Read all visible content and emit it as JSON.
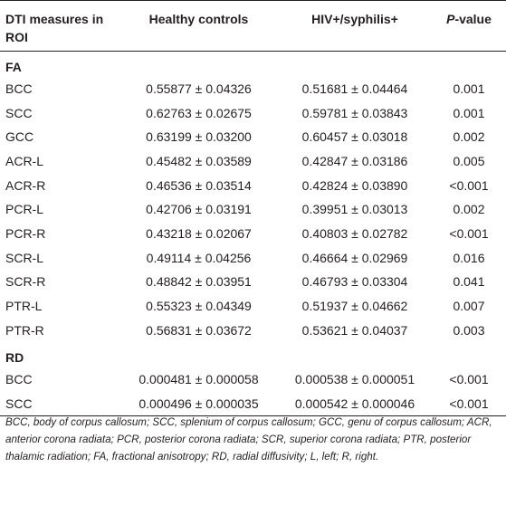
{
  "table": {
    "header": {
      "col1": "DTI measures in ROI",
      "col2": "Healthy controls",
      "col3": "HIV+/syphilis+",
      "col4_p": "P",
      "col4_rest": "-value"
    },
    "sections": [
      {
        "title": "FA",
        "rows": [
          {
            "roi": "BCC",
            "hc": "0.55877 ± 0.04326",
            "hiv": "0.51681 ± 0.04464",
            "p": "0.001"
          },
          {
            "roi": "SCC",
            "hc": "0.62763 ± 0.02675",
            "hiv": "0.59781 ± 0.03843",
            "p": "0.001"
          },
          {
            "roi": "GCC",
            "hc": "0.63199 ± 0.03200",
            "hiv": "0.60457 ± 0.03018",
            "p": "0.002"
          },
          {
            "roi": "ACR-L",
            "hc": "0.45482 ± 0.03589",
            "hiv": "0.42847 ± 0.03186",
            "p": "0.005"
          },
          {
            "roi": "ACR-R",
            "hc": "0.46536 ± 0.03514",
            "hiv": "0.42824 ± 0.03890",
            "p": "<0.001"
          },
          {
            "roi": "PCR-L",
            "hc": "0.42706 ± 0.03191",
            "hiv": "0.39951 ± 0.03013",
            "p": "0.002"
          },
          {
            "roi": "PCR-R",
            "hc": "0.43218 ± 0.02067",
            "hiv": "0.40803 ± 0.02782",
            "p": "<0.001"
          },
          {
            "roi": "SCR-L",
            "hc": "0.49114 ± 0.04256",
            "hiv": "0.46664 ± 0.02969",
            "p": "0.016"
          },
          {
            "roi": "SCR-R",
            "hc": "0.48842 ± 0.03951",
            "hiv": "0.46793 ± 0.03304",
            "p": "0.041"
          },
          {
            "roi": "PTR-L",
            "hc": "0.55323 ± 0.04349",
            "hiv": "0.51937 ± 0.04662",
            "p": "0.007"
          },
          {
            "roi": "PTR-R",
            "hc": "0.56831 ± 0.03672",
            "hiv": "0.53621 ± 0.04037",
            "p": "0.003"
          }
        ]
      },
      {
        "title": "RD",
        "rows": [
          {
            "roi": "BCC",
            "hc": "0.000481 ± 0.000058",
            "hiv": "0.000538 ± 0.000051",
            "p": "<0.001"
          },
          {
            "roi": "SCC",
            "hc": "0.000496 ± 0.000035",
            "hiv": "0.000542 ± 0.000046",
            "p": "<0.001"
          }
        ]
      }
    ]
  },
  "footnote": "BCC, body of corpus callosum; SCC, splenium of corpus callosum; GCC, genu of corpus callosum; ACR, anterior corona radiata; PCR, posterior corona radiata; SCR, superior corona radiata; PTR, posterior thalamic radiation; FA, fractional anisotropy; RD, radial diffusivity; L, left; R, right."
}
